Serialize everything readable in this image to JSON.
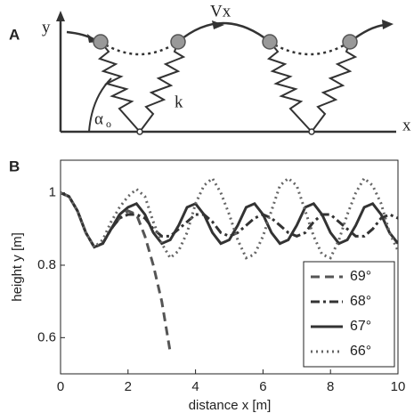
{
  "diagram": {
    "panel_a": "A",
    "y_axis": "y",
    "velocity": "Vx",
    "spring": "k",
    "alpha": "α",
    "alpha_sub": "o",
    "x_axis": "x"
  },
  "chart_data": {
    "type": "line",
    "panel": "B",
    "xlabel": "distance x [m]",
    "ylabel": "height y [m]",
    "xlim": [
      0,
      10
    ],
    "ylim": [
      0.5,
      1.09
    ],
    "xticks": [
      0,
      2,
      4,
      6,
      8,
      10
    ],
    "yticks": [
      0.6,
      0.8,
      1
    ],
    "legend": "lower right",
    "x": [
      0,
      0.25,
      0.5,
      0.75,
      1,
      1.25,
      1.5,
      1.75,
      2,
      2.25,
      2.5,
      2.75,
      3,
      3.25,
      3.5,
      3.75,
      4,
      4.25,
      4.5,
      4.75,
      5,
      5.25,
      5.5,
      5.75,
      6,
      6.25,
      6.5,
      6.75,
      7,
      7.25,
      7.5,
      7.75,
      8,
      8.25,
      8.5,
      8.75,
      9,
      9.25,
      9.5,
      9.75,
      10
    ],
    "series": [
      {
        "name": "69°",
        "color": "#555555",
        "dash": "dashed",
        "values": [
          1,
          0.99,
          0.95,
          0.89,
          0.85,
          0.86,
          0.9,
          0.93,
          0.95,
          0.94,
          0.88,
          0.8,
          0.7,
          0.56,
          null,
          null,
          null,
          null,
          null,
          null,
          null,
          null,
          null,
          null,
          null,
          null,
          null,
          null,
          null,
          null,
          null,
          null,
          null,
          null,
          null,
          null,
          null,
          null,
          null,
          null,
          null
        ]
      },
      {
        "name": "68°",
        "color": "#333333",
        "dash": "dashdot",
        "values": [
          1,
          0.99,
          0.95,
          0.89,
          0.85,
          0.86,
          0.9,
          0.93,
          0.94,
          0.94,
          0.93,
          0.9,
          0.88,
          0.88,
          0.9,
          0.92,
          0.94,
          0.94,
          0.92,
          0.89,
          0.88,
          0.89,
          0.91,
          0.93,
          0.94,
          0.93,
          0.91,
          0.89,
          0.88,
          0.89,
          0.92,
          0.94,
          0.94,
          0.92,
          0.9,
          0.88,
          0.88,
          0.9,
          0.93,
          0.94,
          0.93
        ]
      },
      {
        "name": "67°",
        "color": "#333333",
        "dash": "solid",
        "values": [
          1,
          0.99,
          0.95,
          0.89,
          0.85,
          0.86,
          0.9,
          0.94,
          0.96,
          0.97,
          0.94,
          0.89,
          0.86,
          0.87,
          0.91,
          0.96,
          0.97,
          0.94,
          0.89,
          0.86,
          0.87,
          0.91,
          0.96,
          0.97,
          0.94,
          0.89,
          0.86,
          0.87,
          0.91,
          0.96,
          0.97,
          0.94,
          0.89,
          0.86,
          0.87,
          0.91,
          0.96,
          0.97,
          0.94,
          0.89,
          0.86
        ]
      },
      {
        "name": "66°",
        "color": "#666666",
        "dash": "dotted",
        "values": [
          1,
          0.99,
          0.95,
          0.89,
          0.85,
          0.87,
          0.92,
          0.96,
          0.99,
          1.01,
          0.99,
          0.92,
          0.86,
          0.82,
          0.84,
          0.89,
          0.97,
          1.02,
          1.04,
          1,
          0.94,
          0.87,
          0.82,
          0.83,
          0.88,
          0.95,
          1.02,
          1.04,
          1.02,
          0.95,
          0.88,
          0.83,
          0.82,
          0.87,
          0.94,
          1,
          1.04,
          1.02,
          0.97,
          0.89,
          0.84
        ]
      }
    ]
  }
}
